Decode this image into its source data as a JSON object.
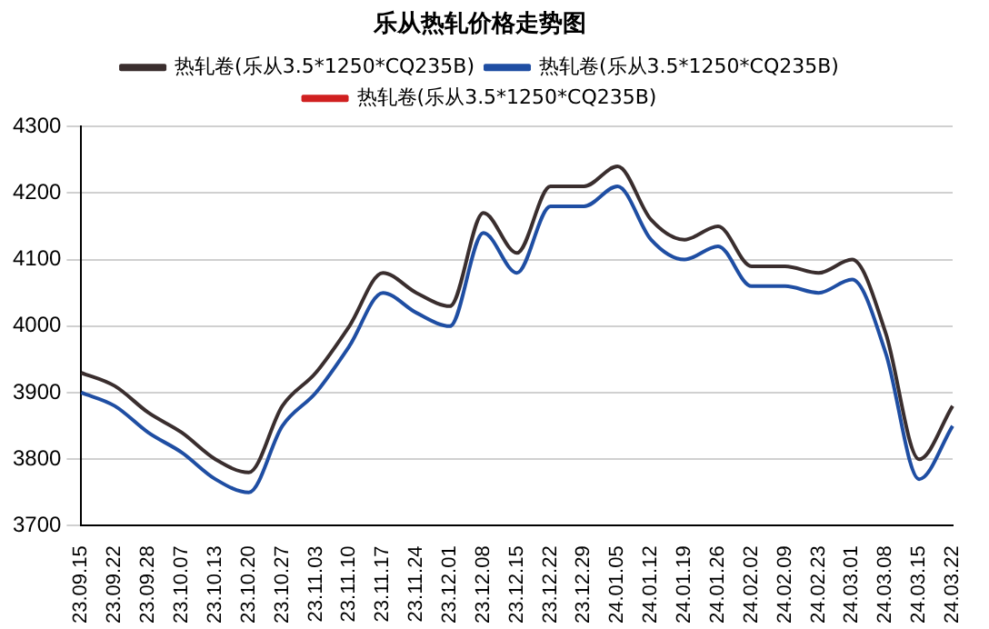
{
  "chart_data": {
    "type": "line",
    "title": "乐从热轧价格走势图",
    "categories": [
      "23.09.15",
      "23.09.22",
      "23.09.28",
      "23.10.07",
      "23.10.13",
      "23.10.20",
      "23.10.27",
      "23.11.03",
      "23.11.10",
      "23.11.17",
      "23.11.24",
      "23.12.01",
      "23.12.08",
      "23.12.15",
      "23.12.22",
      "23.12.29",
      "24.01.05",
      "24.01.12",
      "24.01.19",
      "24.01.26",
      "24.02.02",
      "24.02.09",
      "24.02.23",
      "24.03.01",
      "24.03.08",
      "24.03.15",
      "24.03.22"
    ],
    "series": [
      {
        "name": "热轧卷(乐从3.5*1250*CQ235B)",
        "color": "#3a2e2e",
        "values": [
          3930,
          3910,
          3870,
          3840,
          3800,
          3780,
          3880,
          3930,
          4000,
          4080,
          4050,
          4030,
          4170,
          4110,
          4210,
          4210,
          4240,
          4160,
          4130,
          4150,
          4090,
          4090,
          4080,
          4100,
          3990,
          3800,
          3880
        ]
      },
      {
        "name": "热轧卷(乐从3.5*1250*CQ235B)",
        "color": "#1f4ea3",
        "values": [
          3900,
          3880,
          3840,
          3810,
          3770,
          3750,
          3850,
          3900,
          3970,
          4050,
          4020,
          4000,
          4140,
          4080,
          4180,
          4180,
          4210,
          4130,
          4100,
          4120,
          4060,
          4060,
          4050,
          4070,
          3960,
          3770,
          3850
        ]
      },
      {
        "name": "热轧卷(乐从3.5*1250*CQ235B)",
        "color": "#d02020",
        "values": [
          null,
          null,
          null,
          null,
          null,
          null,
          null,
          null,
          null,
          null,
          null,
          null,
          null,
          null,
          null,
          null,
          null,
          null,
          null,
          null,
          null,
          null,
          null,
          null,
          null,
          null,
          null
        ]
      }
    ],
    "ylim": [
      3700,
      4300
    ],
    "yticks": [
      3700,
      3800,
      3900,
      4000,
      4100,
      4200,
      4300
    ],
    "grid": "y",
    "legend": "top",
    "marker": "none",
    "line_style": "solid"
  }
}
